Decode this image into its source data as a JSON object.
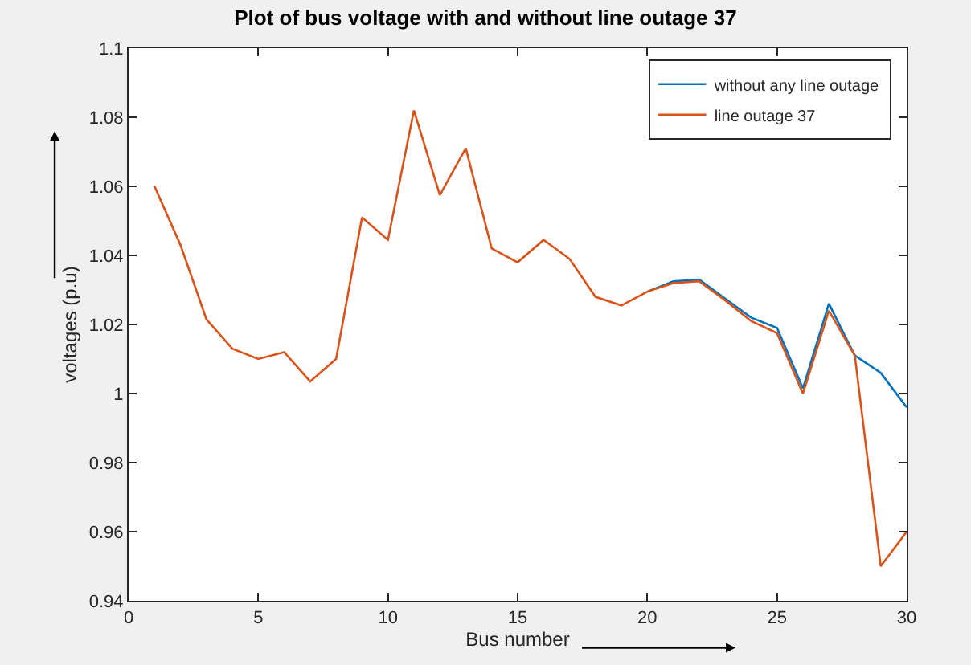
{
  "chart_data": {
    "type": "line",
    "title": "Plot of bus voltage with and without line outage 37",
    "xlabel": "Bus number",
    "ylabel": "voltages (p.u)",
    "x": [
      1,
      2,
      3,
      4,
      5,
      6,
      7,
      8,
      9,
      10,
      11,
      12,
      13,
      14,
      15,
      16,
      17,
      18,
      19,
      20,
      21,
      22,
      23,
      24,
      25,
      26,
      27,
      28,
      29,
      30
    ],
    "series": [
      {
        "name": "without any line outage",
        "color": "#0072bd",
        "values": [
          null,
          null,
          null,
          null,
          null,
          null,
          null,
          null,
          null,
          null,
          null,
          null,
          null,
          null,
          null,
          null,
          null,
          null,
          null,
          1.0295,
          1.0325,
          1.033,
          1.0275,
          1.022,
          1.019,
          1.0015,
          1.026,
          1.011,
          1.006,
          0.996
        ]
      },
      {
        "name": "line outage 37",
        "color": "#d95319",
        "values": [
          1.06,
          1.043,
          1.0215,
          1.013,
          1.01,
          1.012,
          1.0035,
          1.01,
          1.051,
          1.0445,
          1.082,
          1.0575,
          1.071,
          1.042,
          1.038,
          1.0445,
          1.039,
          1.028,
          1.0255,
          1.0295,
          1.032,
          1.0325,
          1.027,
          1.021,
          1.0175,
          1.0,
          1.024,
          1.011,
          0.95,
          0.96
        ]
      }
    ],
    "xlim": [
      0,
      30
    ],
    "xticks": [
      0,
      5,
      10,
      15,
      20,
      25,
      30
    ],
    "ylim": [
      0.94,
      1.1
    ],
    "yticks": [
      0.94,
      0.96,
      0.98,
      1,
      1.02,
      1.04,
      1.06,
      1.08,
      1.1
    ],
    "legend": "top right",
    "marker": "none",
    "line_style": "solid"
  }
}
